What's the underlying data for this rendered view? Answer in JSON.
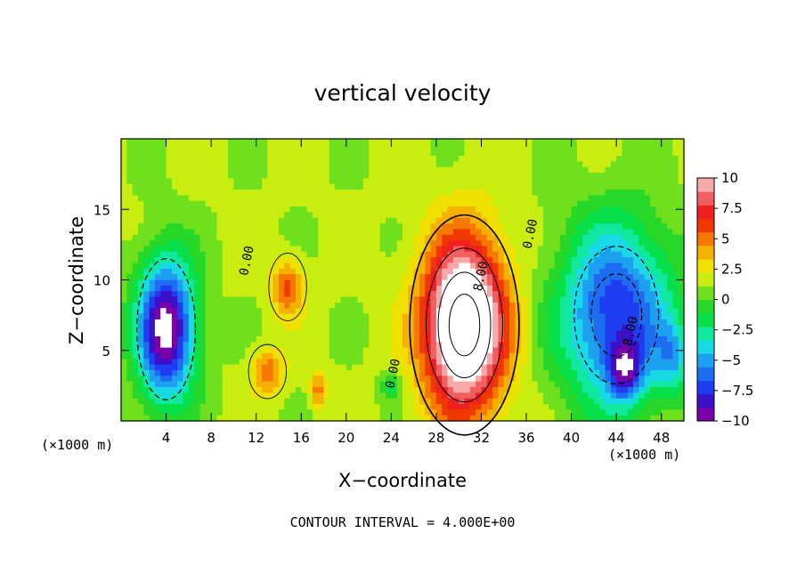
{
  "chart_data": {
    "type": "heatmap",
    "title": "vertical velocity",
    "xlabel": "X−coordinate",
    "ylabel": "Z−coordinate",
    "x_unit_left": "(×1000 m)",
    "x_unit_right": "(×1000 m)",
    "footer": "CONTOUR INTERVAL = 4.000E+00",
    "xlim": [
      0,
      50
    ],
    "ylim": [
      0,
      20
    ],
    "x_ticks": [
      4,
      8,
      12,
      16,
      20,
      24,
      28,
      32,
      36,
      40,
      44,
      48
    ],
    "x_tick_labels": [
      "4",
      "8",
      "12",
      "16",
      "20",
      "24",
      "28",
      "32",
      "36",
      "40",
      "44",
      "48"
    ],
    "y_ticks": [
      5,
      10,
      15
    ],
    "y_tick_labels": [
      "5",
      "10",
      "15"
    ],
    "colorbar": {
      "min": -10,
      "max": 10,
      "ticks": [
        10,
        7.5,
        5,
        2.5,
        0,
        -2.5,
        -5,
        -7.5,
        -10
      ],
      "tick_labels": [
        "10",
        "7.5",
        "5",
        "2.5",
        "0",
        "−2.5",
        "−5",
        "−7.5",
        "−10"
      ]
    },
    "contour_interval": 4,
    "contour_labels": [
      {
        "text": "0.00",
        "x": 11.5,
        "z": 11.3
      },
      {
        "text": "0.00",
        "x": 24.5,
        "z": 3.3
      },
      {
        "text": "0.00",
        "x": 36.7,
        "z": 13.2
      },
      {
        "text": "8.00",
        "x": 32.3,
        "z": 10.2
      },
      {
        "text": "8.00",
        "x": 45.6,
        "z": 6.3
      }
    ],
    "features": [
      {
        "kind": "updraft",
        "x": 30.5,
        "z": 6.8,
        "rx": 3.6,
        "rz": 6.0,
        "peak": 14
      },
      {
        "kind": "updraft",
        "x": 14.8,
        "z": 9.5,
        "rx": 1.4,
        "rz": 2.0,
        "peak": 4.5
      },
      {
        "kind": "updraft",
        "x": 13.0,
        "z": 3.5,
        "rx": 1.4,
        "rz": 1.6,
        "peak": 4.0
      },
      {
        "kind": "updraft",
        "x": 17.5,
        "z": 2.2,
        "rx": 0.7,
        "rz": 1.2,
        "peak": 4.0
      },
      {
        "kind": "downdraft",
        "x": 4.0,
        "z": 6.5,
        "rx": 2.6,
        "rz": 5.0,
        "peak": -12
      },
      {
        "kind": "downdraft",
        "x": 44.0,
        "z": 7.5,
        "rx": 5.0,
        "rz": 6.5,
        "peak": -9
      },
      {
        "kind": "downdraft",
        "x": 44.8,
        "z": 3.5,
        "rx": 1.5,
        "rz": 2.0,
        "peak": -6
      },
      {
        "kind": "downdraft",
        "x": 49.0,
        "z": 4.5,
        "rx": 1.5,
        "rz": 2.5,
        "peak": -4
      },
      {
        "kind": "downdraft",
        "x": 24.0,
        "z": 2.5,
        "rx": 1.0,
        "rz": 1.0,
        "peak": -3
      }
    ],
    "background_value": 1.3,
    "colors": {
      "scale": [
        "#7b00a8",
        "#3a10c8",
        "#1e3cf0",
        "#1e6cf0",
        "#1ea0f0",
        "#19d9e6",
        "#10e8a0",
        "#08e04a",
        "#28d828",
        "#6ee01e",
        "#c8ee10",
        "#f0e000",
        "#f6b000",
        "#f67800",
        "#f03800",
        "#f02020",
        "#f06060",
        "#f7a8a8"
      ],
      "over": "#ffffff",
      "under": "#ffffff"
    }
  }
}
